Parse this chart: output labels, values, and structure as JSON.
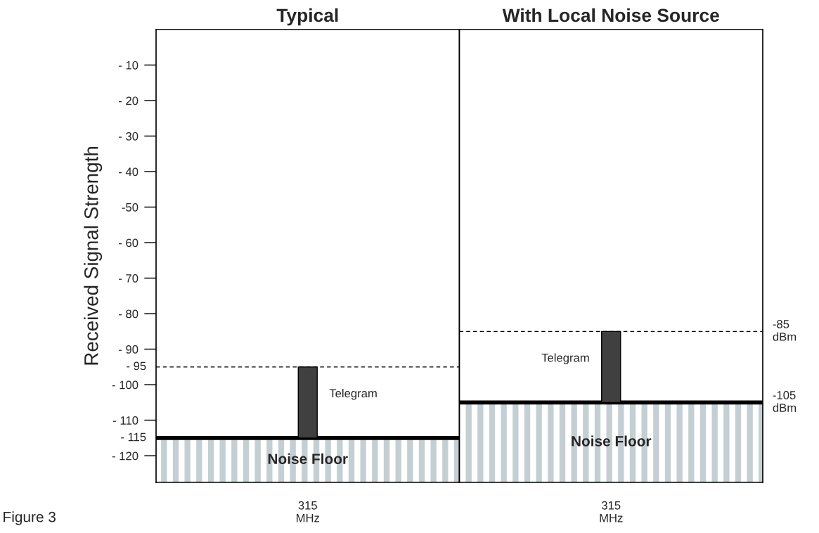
{
  "chart_data": [
    {
      "type": "bar",
      "title": "Typical",
      "ylabel": "Received Signal Strength",
      "categories": [
        "315\nMHz"
      ],
      "ylim": [
        -127.5,
        0
      ],
      "yticks": [
        {
          "value": -10,
          "label": "- 10"
        },
        {
          "value": -20,
          "label": "- 20"
        },
        {
          "value": -30,
          "label": "- 30"
        },
        {
          "value": -40,
          "label": "- 40"
        },
        {
          "value": -50,
          "label": "-50"
        },
        {
          "value": -60,
          "label": "- 60"
        },
        {
          "value": -70,
          "label": "- 70"
        },
        {
          "value": -80,
          "label": "- 80"
        },
        {
          "value": -90,
          "label": "- 90"
        },
        {
          "value": -100,
          "label": "- 100"
        },
        {
          "value": -110,
          "label": "- 110"
        },
        {
          "value": -120,
          "label": "- 120"
        }
      ],
      "series": [
        {
          "color": "#404040",
          "base": [
            -115
          ],
          "values": [
            20
          ]
        }
      ],
      "bands": [
        {
          "axis": "y",
          "from": -127.5,
          "to": -115,
          "label": "Noise Floor",
          "color": "#c3cfd3"
        }
      ],
      "ref_lines": [
        {
          "axis": "y",
          "value": -95,
          "label": "- 95",
          "line_style": "dashed",
          "color": "#000000"
        },
        {
          "axis": "y",
          "value": -115,
          "label": "- 115",
          "line_style": "solid",
          "color": "#000000"
        }
      ],
      "annotations": [
        {
          "text": "Telegram",
          "y": -95
        },
        "Figure 3"
      ]
    },
    {
      "type": "bar",
      "title": "With Local Noise Source",
      "tick_labels": "x",
      "categories": [
        "315\nMHz"
      ],
      "ylim": [
        -127.5,
        0
      ],
      "series": [
        {
          "color": "#404040",
          "base": [
            -105
          ],
          "values": [
            20
          ]
        }
      ],
      "bands": [
        {
          "axis": "y",
          "from": -127.5,
          "to": -105,
          "label": "Noise Floor",
          "color": "#c3cfd3"
        }
      ],
      "ref_lines": [
        {
          "axis": "y",
          "value": -85,
          "label": "-85\ndBm",
          "line_style": "dashed",
          "color": "#000000"
        },
        {
          "axis": "y",
          "value": -105,
          "label": "-105\ndBm",
          "line_style": "solid",
          "color": "#000000"
        }
      ],
      "annotations": [
        {
          "text": "Telegram",
          "y": -85
        }
      ]
    }
  ]
}
